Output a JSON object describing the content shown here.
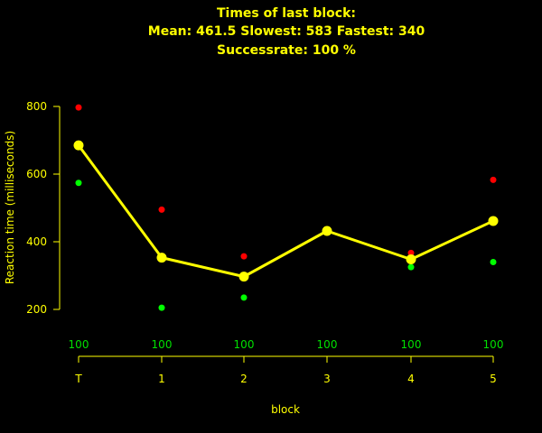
{
  "colors": {
    "background": "#000000",
    "text": "#ffff00",
    "mean_line": "#ffff00",
    "slowest": "#ff0000",
    "fastest": "#00ff00",
    "success": "#00e000"
  },
  "chart_data": {
    "type": "line",
    "title_lines": [
      "Times of last block:",
      "Mean: 461.5 Slowest: 583 Fastest: 340",
      "Successrate: 100 %"
    ],
    "xlabel": "block",
    "ylabel": "Reaction time (milliseconds)",
    "categories": [
      "T",
      "1",
      "2",
      "3",
      "4",
      "5"
    ],
    "ylim": [
      200,
      800
    ],
    "yticks": [
      200,
      400,
      600,
      800
    ],
    "success_rates": [
      "100",
      "100",
      "100",
      "100",
      "100",
      "100"
    ],
    "series": [
      {
        "values": [
          685,
          353,
          297,
          432,
          348,
          461.5
        ]
      },
      {
        "values": [
          797,
          495,
          357,
          null,
          367,
          583
        ]
      },
      {
        "values": [
          574,
          205,
          235,
          null,
          325,
          340
        ]
      }
    ],
    "grid": false,
    "legend": "none"
  }
}
